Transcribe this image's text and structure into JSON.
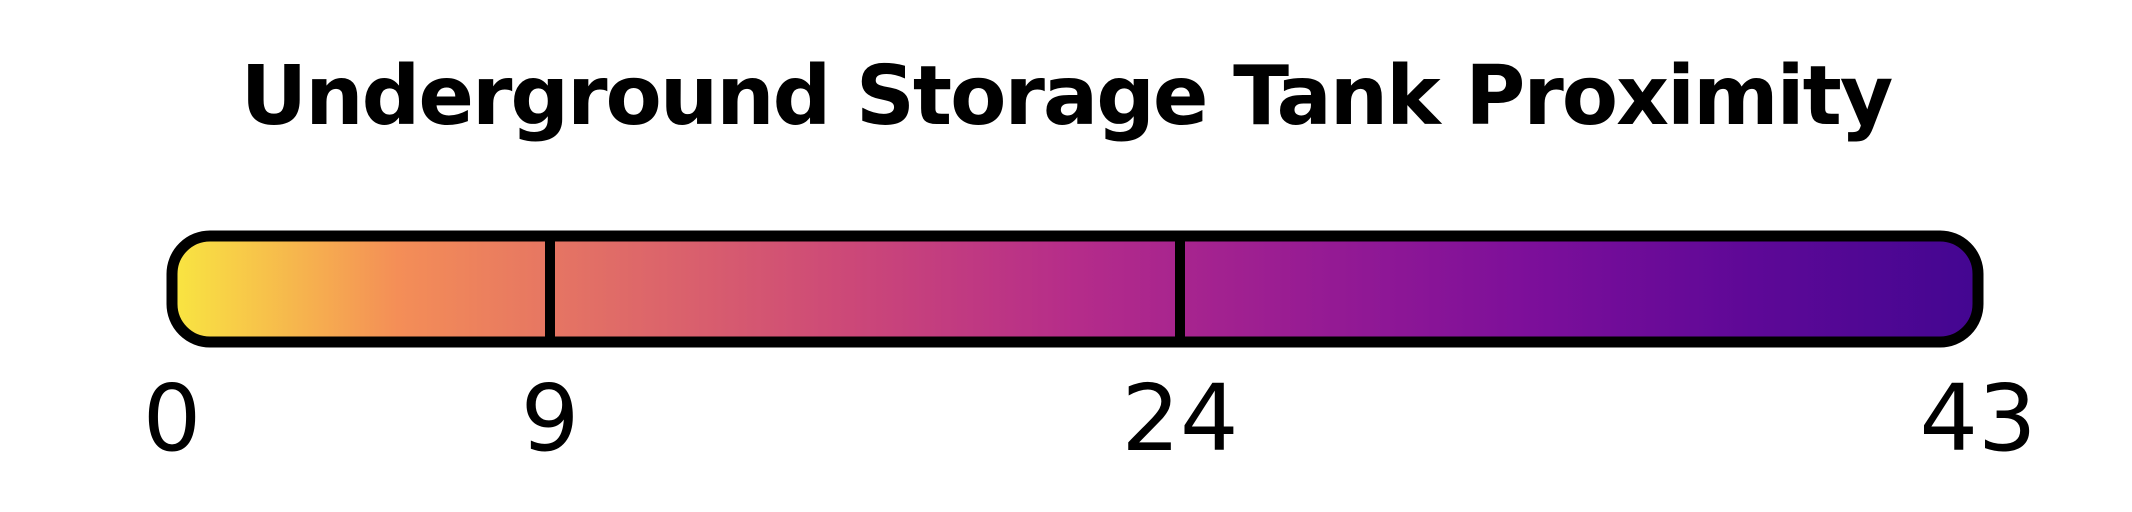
{
  "chart_data": {
    "type": "color-legend",
    "title": "Underground Storage Tank Proximity",
    "colormap": "plasma",
    "gradient_stops": [
      "#f9e641",
      "#f48e57",
      "#df6a68",
      "#cc4878",
      "#b52c8a",
      "#981c93",
      "#7d0f9a",
      "#5e0897",
      "#430691"
    ],
    "range": [
      0,
      43
    ],
    "breaks": [
      9,
      24
    ],
    "ticks": [
      0,
      9,
      24,
      43
    ],
    "tick_labels": [
      "0",
      "9",
      "24",
      "43"
    ]
  }
}
